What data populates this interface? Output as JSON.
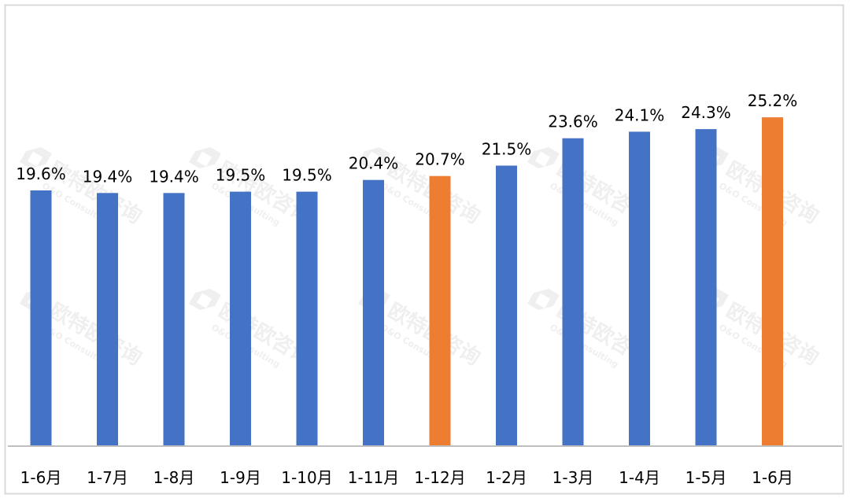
{
  "chart_data": {
    "type": "bar",
    "categories": [
      "1-6月",
      "1-7月",
      "1-8月",
      "1-9月",
      "1-10月",
      "1-11月",
      "1-12月",
      "1-2月",
      "1-3月",
      "1-4月",
      "1-5月",
      "1-6月"
    ],
    "values": [
      19.6,
      19.4,
      19.4,
      19.5,
      19.5,
      20.4,
      20.7,
      21.5,
      23.6,
      24.1,
      24.3,
      25.2
    ],
    "data_labels": [
      "19.6%",
      "19.4%",
      "19.4%",
      "19.5%",
      "19.5%",
      "20.4%",
      "20.7%",
      "21.5%",
      "23.6%",
      "24.1%",
      "24.3%",
      "25.2%"
    ],
    "highlighted": [
      false,
      false,
      false,
      false,
      false,
      false,
      true,
      false,
      false,
      false,
      false,
      true
    ],
    "title": "",
    "xlabel": "",
    "ylabel": "",
    "ylim": [
      0,
      28
    ],
    "grid": false,
    "legend": "none"
  },
  "colors": {
    "bar": "#4472C4",
    "highlight": "#ED7D31",
    "axis": "#BFBFBF",
    "border": "#D9D9D9",
    "text": "#000000",
    "watermark": "#7F7F7F"
  },
  "watermark": {
    "cn": "欧特欧咨询",
    "en": "O&O Consulting",
    "icon": "oo-logo-icon"
  }
}
